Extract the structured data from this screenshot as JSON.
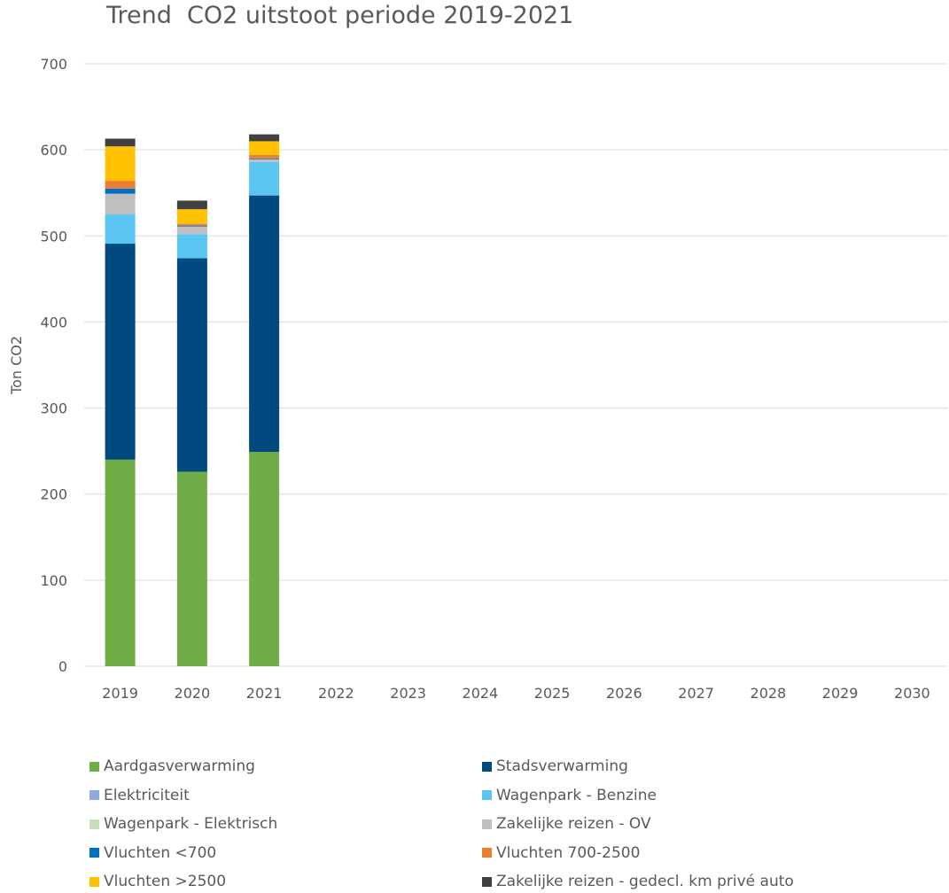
{
  "chart_data": {
    "type": "bar",
    "stacked": true,
    "title": "Trend  CO2 uitstoot periode 2019-2021",
    "xlabel": "",
    "ylabel": "Ton CO2",
    "ylim": [
      0,
      700
    ],
    "yticks": [
      "0",
      "100",
      "200",
      "300",
      "400",
      "500",
      "600",
      "700"
    ],
    "categories": [
      "2019",
      "2020",
      "2021",
      "2022",
      "2023",
      "2024",
      "2025",
      "2026",
      "2027",
      "2028",
      "2029",
      "2030"
    ],
    "grid": true,
    "legend_position": "bottom",
    "series": [
      {
        "name": "Aardgasverwarming",
        "color": "#70AD47",
        "values": [
          240,
          226,
          249,
          null,
          null,
          null,
          null,
          null,
          null,
          null,
          null,
          null
        ]
      },
      {
        "name": "Stadsverwarming",
        "color": "#004A7F",
        "values": [
          251,
          248,
          298,
          null,
          null,
          null,
          null,
          null,
          null,
          null,
          null,
          null
        ]
      },
      {
        "name": "Elektriciteit",
        "color": "#8FAADC",
        "values": [
          0,
          0,
          0,
          null,
          null,
          null,
          null,
          null,
          null,
          null,
          null,
          null
        ]
      },
      {
        "name": "Wagenpark - Benzine",
        "color": "#5BC5F2",
        "values": [
          34,
          28,
          39,
          null,
          null,
          null,
          null,
          null,
          null,
          null,
          null,
          null
        ]
      },
      {
        "name": "Wagenpark - Elektrisch",
        "color": "#C5E0B4",
        "values": [
          0,
          0,
          0,
          null,
          null,
          null,
          null,
          null,
          null,
          null,
          null,
          null
        ]
      },
      {
        "name": "Zakelijke reizen - OV",
        "color": "#BFBFBF",
        "values": [
          24,
          9,
          3,
          null,
          null,
          null,
          null,
          null,
          null,
          null,
          null,
          null
        ]
      },
      {
        "name": "Vluchten <700",
        "color": "#0070C0",
        "values": [
          6,
          1,
          1,
          null,
          null,
          null,
          null,
          null,
          null,
          null,
          null,
          null
        ]
      },
      {
        "name": "Vluchten 700-2500",
        "color": "#ED7D31",
        "values": [
          9,
          2,
          4,
          null,
          null,
          null,
          null,
          null,
          null,
          null,
          null,
          null
        ]
      },
      {
        "name": "Vluchten >2500",
        "color": "#FFC000",
        "values": [
          40,
          17,
          16,
          null,
          null,
          null,
          null,
          null,
          null,
          null,
          null,
          null
        ]
      },
      {
        "name": "Zakelijke reizen - gedecl. km privé auto",
        "color": "#404040",
        "values": [
          9,
          10,
          8,
          null,
          null,
          null,
          null,
          null,
          null,
          null,
          null,
          null
        ]
      }
    ],
    "legend_order": [
      0,
      1,
      2,
      3,
      4,
      5,
      6,
      7,
      8,
      9
    ]
  }
}
